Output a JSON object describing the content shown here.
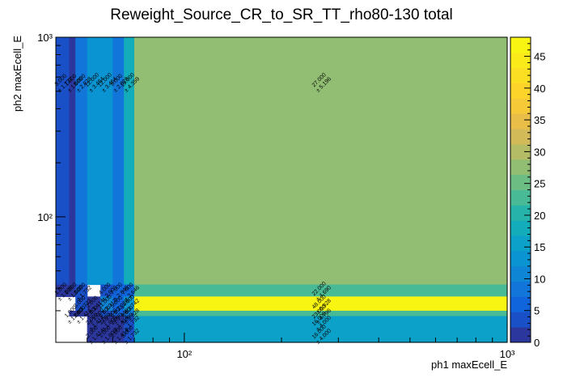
{
  "chart_data": {
    "type": "heatmap",
    "title": "Reweight_Source_CR_to_SR_TT_rho80-130 total",
    "xlabel": "ph1 maxEcell_E",
    "ylabel": "ph2 maxEcell_E",
    "x_scale": "log",
    "y_scale": "log",
    "xlim": [
      40,
      1000
    ],
    "ylim": [
      20,
      1000
    ],
    "x_ticks": [
      {
        "value": 100,
        "label": "10²"
      },
      {
        "value": 1000,
        "label": "10³"
      }
    ],
    "y_ticks": [
      {
        "value": 100,
        "label": "10²"
      },
      {
        "value": 1000,
        "label": "10³"
      }
    ],
    "zlim": [
      0,
      48
    ],
    "colorbar_ticks": [
      "0",
      "5",
      "10",
      "15",
      "20",
      "25",
      "30",
      "35",
      "40",
      "45"
    ],
    "x_bins": [
      40,
      44,
      46,
      50,
      55,
      60,
      65,
      70,
      1000
    ],
    "y_bins": [
      20,
      25,
      28,
      30,
      36,
      42,
      1000
    ],
    "cells": [
      {
        "xi": 0,
        "yi": 5,
        "value": 3,
        "error": 1.732,
        "label": "3.000\n± 1.732"
      },
      {
        "xi": 1,
        "yi": 5,
        "value": 1,
        "error": 1.0,
        "label": "1.000\n± 1.000"
      },
      {
        "xi": 2,
        "yi": 5,
        "value": 8,
        "error": 2.828,
        "label": "8.000\n± 2.828"
      },
      {
        "xi": 3,
        "yi": 5,
        "value": 12,
        "error": 3.464,
        "label": "12.000\n± 3.464"
      },
      {
        "xi": 4,
        "yi": 5,
        "value": 12,
        "error": 3.464,
        "label": "12.000\n± 3.464"
      },
      {
        "xi": 5,
        "yi": 5,
        "value": 8,
        "error": 2.828,
        "label": "8.000\n± 2.828"
      },
      {
        "xi": 6,
        "yi": 5,
        "value": 19,
        "error": 4.359,
        "label": "19.000\n± 4.359"
      },
      {
        "xi": 7,
        "yi": 5,
        "value": 27,
        "error": 5.196,
        "label": "27.000\n± 5.196"
      },
      {
        "xi": 0,
        "yi": 4,
        "value": 1,
        "error": 1.0,
        "label": "1.000\n± 1.000"
      },
      {
        "xi": 1,
        "yi": 4,
        "value": 1,
        "error": 1.0,
        "label": "1.000\n± 1.000"
      },
      {
        "xi": 2,
        "yi": 4,
        "value": 3,
        "error": 1.732,
        "label": "3.000\n± 1.732"
      },
      {
        "xi": 4,
        "yi": 4,
        "value": 4,
        "error": 2.0,
        "label": "4.000\n± 2.000"
      },
      {
        "xi": 5,
        "yi": 4,
        "value": 7,
        "error": 2.646,
        "label": "7.000\n± 2.646"
      },
      {
        "xi": 6,
        "yi": 4,
        "value": 7,
        "error": 2.646,
        "label": "7.000\n± 2.646"
      },
      {
        "xi": 7,
        "yi": 4,
        "value": 22,
        "error": 4.69,
        "label": "22.000\n± 4.690"
      },
      {
        "xi": 2,
        "yi": 3,
        "value": 3,
        "error": 1.732,
        "label": "3.000\n± 1.732"
      },
      {
        "xi": 3,
        "yi": 3,
        "value": 2,
        "error": 1.414,
        "label": "2.000\n± 1.414"
      },
      {
        "xi": 4,
        "yi": 3,
        "value": 11,
        "error": 3.317,
        "label": "11.000\n± 3.317"
      },
      {
        "xi": 5,
        "yi": 3,
        "value": 5,
        "error": 2.236,
        "label": "5.000\n± 2.236"
      },
      {
        "xi": 6,
        "yi": 3,
        "value": 14,
        "error": 3.742,
        "label": "14.000\n± 3.742"
      },
      {
        "xi": 7,
        "yi": 3,
        "value": 48,
        "error": 6.928,
        "label": "48.000\n± 6.928"
      },
      {
        "xi": 1,
        "yi": 2,
        "value": 1,
        "error": 1.0,
        "label": "1.000\n± 1.000"
      },
      {
        "xi": 2,
        "yi": 2,
        "value": 2,
        "error": 1.414,
        "label": "2.000\n± 1.414"
      },
      {
        "xi": 3,
        "yi": 2,
        "value": 1,
        "error": 1.0,
        "label": "1.000\n± 1.000"
      },
      {
        "xi": 4,
        "yi": 2,
        "value": 4,
        "error": 2.0,
        "label": "4.000\n± 2.000"
      },
      {
        "xi": 5,
        "yi": 2,
        "value": 6,
        "error": 2.449,
        "label": "6.000\n± 2.449"
      },
      {
        "xi": 6,
        "yi": 2,
        "value": 8,
        "error": 2.828,
        "label": "8.000\n± 2.828"
      },
      {
        "xi": 7,
        "yi": 2,
        "value": 23,
        "error": 4.796,
        "label": "23.000\n± 4.796"
      },
      {
        "xi": 3,
        "yi": 1,
        "value": 2,
        "error": 1.414,
        "label": "2.000\n± 1.414"
      },
      {
        "xi": 4,
        "yi": 1,
        "value": 1,
        "error": 1.0,
        "label": "1.000\n± 1.000"
      },
      {
        "xi": 5,
        "yi": 1,
        "value": 2,
        "error": 1.414,
        "label": "2.000\n± 1.414"
      },
      {
        "xi": 6,
        "yi": 1,
        "value": 3,
        "error": 1.732,
        "label": "3.000\n± 1.732"
      },
      {
        "xi": 7,
        "yi": 1,
        "value": 16,
        "error": 4.0,
        "label": "16.000\n± 4.000"
      },
      {
        "xi": 3,
        "yi": 0,
        "value": 2,
        "error": 1.414,
        "label": "2.000\n± 1.414"
      },
      {
        "xi": 4,
        "yi": 0,
        "value": 1,
        "error": 1.0,
        "label": "1.000\n± 1.000"
      },
      {
        "xi": 5,
        "yi": 0,
        "value": 2,
        "error": 1.414,
        "label": "2.000\n± 1.414"
      },
      {
        "xi": 6,
        "yi": 0,
        "value": 3,
        "error": 1.732,
        "label": "3.000\n± 1.732"
      },
      {
        "xi": 7,
        "yi": 0,
        "value": 16,
        "error": 4.0,
        "label": "16.000\n± 4.000"
      }
    ]
  }
}
